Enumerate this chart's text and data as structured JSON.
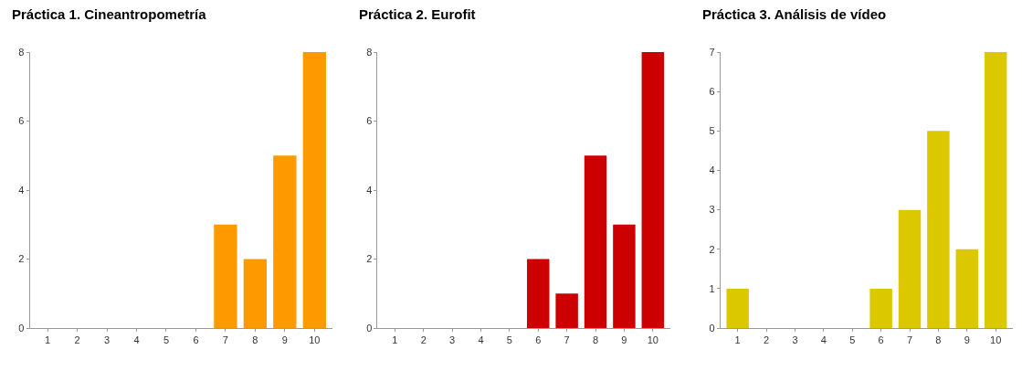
{
  "chart_data": [
    {
      "type": "bar",
      "title": "Práctica 1. Cineantropometría",
      "categories": [
        "1",
        "2",
        "3",
        "4",
        "5",
        "6",
        "7",
        "8",
        "9",
        "10"
      ],
      "values": [
        0,
        0,
        0,
        0,
        0,
        0,
        3,
        2,
        5,
        8
      ],
      "color": "#ff9900",
      "ylim": [
        0,
        8
      ],
      "yticks": [
        0,
        2,
        4,
        6,
        8
      ]
    },
    {
      "type": "bar",
      "title": "Práctica 2. Eurofit",
      "categories": [
        "1",
        "2",
        "3",
        "4",
        "5",
        "6",
        "7",
        "8",
        "9",
        "10"
      ],
      "values": [
        0,
        0,
        0,
        0,
        0,
        2,
        1,
        5,
        3,
        8
      ],
      "color": "#cc0000",
      "ylim": [
        0,
        8
      ],
      "yticks": [
        0,
        2,
        4,
        6,
        8
      ]
    },
    {
      "type": "bar",
      "title": "Práctica 3. Análisis de vídeo",
      "categories": [
        "1",
        "2",
        "3",
        "4",
        "5",
        "6",
        "7",
        "8",
        "9",
        "10"
      ],
      "values": [
        1,
        0,
        0,
        0,
        0,
        1,
        3,
        5,
        2,
        7
      ],
      "color": "#dcc800",
      "ylim": [
        0,
        7
      ],
      "yticks": [
        0,
        1,
        2,
        3,
        4,
        5,
        6,
        7
      ]
    }
  ]
}
